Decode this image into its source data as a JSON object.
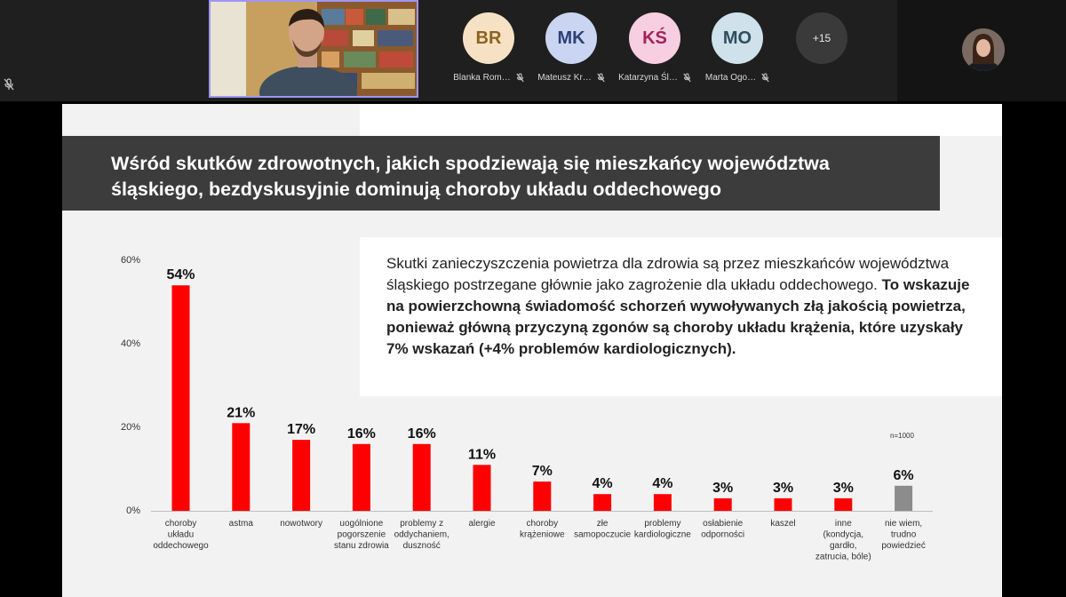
{
  "meeting": {
    "participants": [
      {
        "initials": "BR",
        "name": "Blanka Rom…",
        "bg": "#f7e1c4",
        "fg": "#8a6420"
      },
      {
        "initials": "MK",
        "name": "Mateusz Kr…",
        "bg": "#c9d5f1",
        "fg": "#2f3f78"
      },
      {
        "initials": "KŚ",
        "name": "Katarzyna Śl…",
        "bg": "#f7cfe0",
        "fg": "#a0245a"
      },
      {
        "initials": "MO",
        "name": "Marta Ogo…",
        "bg": "#cfe1ea",
        "fg": "#2e4e5e"
      }
    ],
    "more_count": "+15"
  },
  "slide": {
    "title": "Wśród skutków zdrowotnych, jakich spodziewają się mieszkańcy województwa śląskiego, bezdyskusyjnie dominują choroby układu oddechowego",
    "text_normal": "Skutki zanieczyszczenia powietrza dla zdrowia są przez mieszkańców województwa śląskiego postrzegane głównie jako zagrożenie dla układu oddechowego.",
    "text_bold": "To wskazuje na powierzchowną świadomość schorzeń wywoływanych złą jakością powietrza, ponieważ główną przyczyną zgonów są choroby układu krążenia, które uzyskały 7% wskazań (+4% problemów kardiologicznych).",
    "sample_note": "n=1000"
  },
  "chart_data": {
    "type": "bar",
    "ylim": [
      0,
      60
    ],
    "yticks": [
      "60%",
      "40%",
      "20%",
      "0%"
    ],
    "grid": false,
    "colors": {
      "main": "#ff0000",
      "other": "#8c8c8c"
    },
    "categories": [
      [
        "choroby",
        "układu",
        "oddechowego"
      ],
      [
        "astma"
      ],
      [
        "nowotwory"
      ],
      [
        "uogólnione",
        "pogorszenie",
        "stanu zdrowia"
      ],
      [
        "problemy z",
        "oddychaniem,",
        "duszność"
      ],
      [
        "alergie"
      ],
      [
        "choroby",
        "krążeniowe"
      ],
      [
        "złe",
        "samopoczucie"
      ],
      [
        "problemy",
        "kardiologiczne"
      ],
      [
        "osłabienie",
        "odporności"
      ],
      [
        "kaszel"
      ],
      [
        "inne",
        "(kondycja,",
        "gardło,",
        "zatrucia, bóle)"
      ],
      [
        "nie wiem,",
        "trudno",
        "powiedzieć"
      ]
    ],
    "values": [
      54,
      21,
      17,
      16,
      16,
      11,
      7,
      4,
      4,
      3,
      3,
      3,
      6
    ],
    "value_labels": [
      "54%",
      "21%",
      "17%",
      "16%",
      "16%",
      "11%",
      "7%",
      "4%",
      "4%",
      "3%",
      "3%",
      "3%",
      "6%"
    ]
  }
}
